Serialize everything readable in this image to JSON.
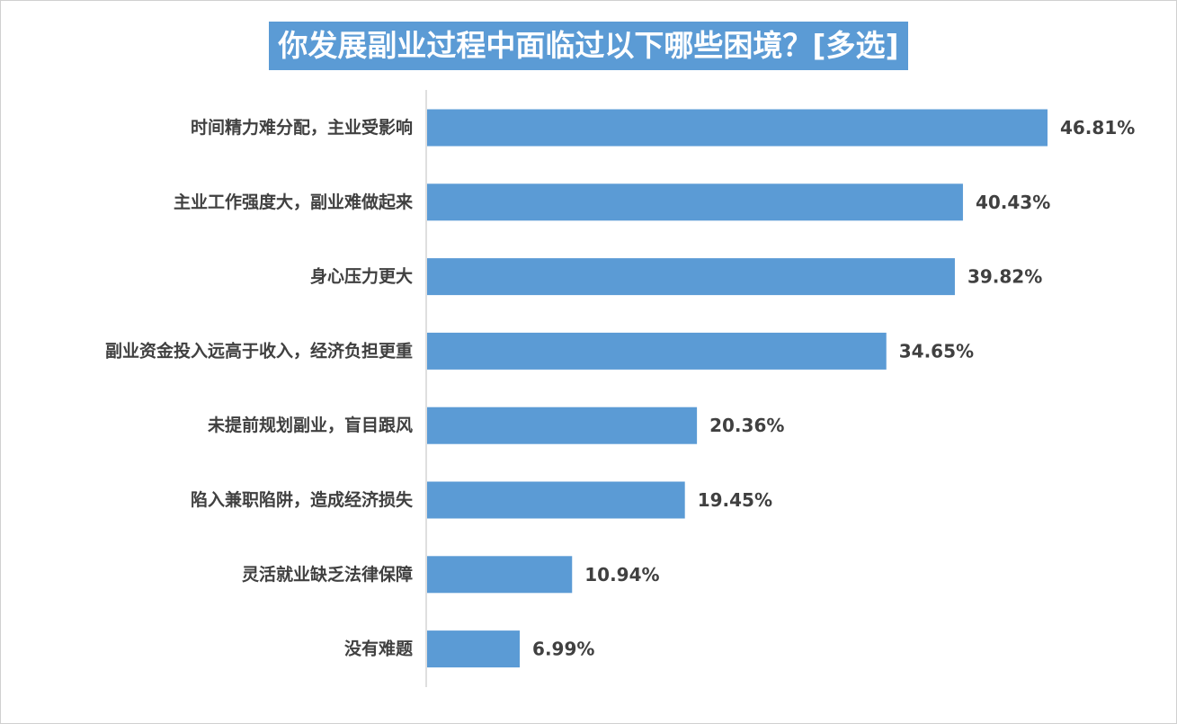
{
  "chart_data": {
    "type": "bar",
    "orientation": "horizontal",
    "title": "你发展副业过程中面临过以下哪些困境？[多选]",
    "categories": [
      "时间精力难分配，主业受影响",
      "主业工作强度大，副业难做起来",
      "身心压力更大",
      "副业资金投入远高于收入，经济负担更重",
      "未提前规划副业，盲目跟风",
      "陷入兼职陷阱，造成经济损失",
      "灵活就业缺乏法律保障",
      "没有难题"
    ],
    "values": [
      46.81,
      40.43,
      39.82,
      34.65,
      20.36,
      19.45,
      10.94,
      6.99
    ],
    "value_labels": [
      "46.81%",
      "40.43%",
      "39.82%",
      "34.65%",
      "20.36%",
      "19.45%",
      "10.94%",
      "6.99%"
    ],
    "xlabel": "",
    "ylabel": "",
    "xlim": [
      0,
      50
    ],
    "grid": false,
    "legend": "none",
    "bar_color": "#5b9bd5",
    "title_bg_color": "#5b9bd5",
    "label_color": "#404040",
    "axis_color": "#bfbfbf"
  }
}
